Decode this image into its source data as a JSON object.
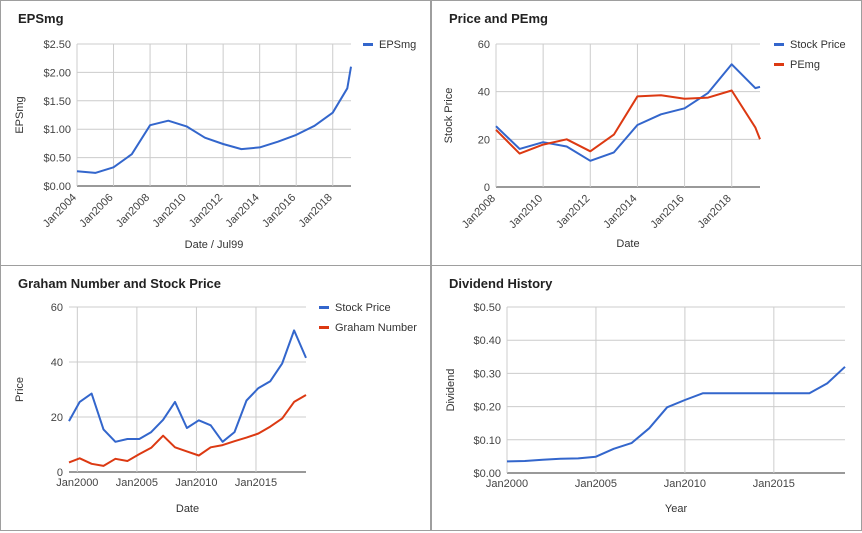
{
  "chart_data": [
    {
      "type": "line",
      "title": "EPSmg",
      "xlabel": "Date / Jul99",
      "ylabel": "EPSmg",
      "x_ticks": [
        "Jan2004",
        "Jan2006",
        "Jan2008",
        "Jan2010",
        "Jan2012",
        "Jan2014",
        "Jan2016",
        "Jan2018"
      ],
      "y_ticks": [
        "$0.00",
        "$0.50",
        "$1.00",
        "$1.50",
        "$2.00",
        "$2.50"
      ],
      "xlim": [
        2004,
        2019
      ],
      "ylim": [
        0,
        2.5
      ],
      "grid": true,
      "legend_position": "right",
      "series": [
        {
          "name": "EPSmg",
          "color": "#3366cc",
          "x": [
            2004,
            2005,
            2006,
            2007,
            2008,
            2009,
            2010,
            2011,
            2012,
            2013,
            2014,
            2015,
            2016,
            2017,
            2018,
            2018.8,
            2019
          ],
          "values": [
            0.26,
            0.23,
            0.33,
            0.56,
            1.07,
            1.15,
            1.05,
            0.85,
            0.74,
            0.65,
            0.68,
            0.78,
            0.9,
            1.06,
            1.29,
            1.72,
            2.1
          ]
        }
      ]
    },
    {
      "type": "line",
      "title": "Price and PEmg",
      "xlabel": "Date",
      "ylabel": "Stock Price",
      "x_ticks": [
        "Jan2008",
        "Jan2010",
        "Jan2012",
        "Jan2014",
        "Jan2016",
        "Jan2018"
      ],
      "y_ticks": [
        "0",
        "20",
        "40",
        "60"
      ],
      "xlim": [
        2008,
        2019.2
      ],
      "ylim": [
        0,
        60
      ],
      "grid": true,
      "legend_position": "right",
      "series": [
        {
          "name": "Stock Price",
          "color": "#3366cc",
          "x": [
            2008,
            2009,
            2010,
            2011,
            2012,
            2013,
            2014,
            2015,
            2016,
            2017,
            2018,
            2019,
            2019.2
          ],
          "values": [
            25.5,
            16.0,
            18.8,
            17.0,
            11.0,
            14.5,
            26.0,
            30.5,
            33.0,
            39.5,
            51.5,
            41.5,
            42.0
          ]
        },
        {
          "name": "PEmg",
          "color": "#dc3912",
          "x": [
            2008,
            2009,
            2010,
            2011,
            2012,
            2013,
            2014,
            2015,
            2016,
            2017,
            2018,
            2019,
            2019.2
          ],
          "values": [
            24.0,
            14.0,
            17.8,
            20.0,
            15.0,
            22.0,
            38.0,
            38.5,
            37.0,
            37.5,
            40.5,
            25.0,
            20.0
          ]
        }
      ]
    },
    {
      "type": "line",
      "title": "Graham Number and Stock Price",
      "xlabel": "Date",
      "ylabel": "Price",
      "x_ticks": [
        "Jan2000",
        "Jan2005",
        "Jan2010",
        "Jan2015"
      ],
      "y_ticks": [
        "0",
        "20",
        "40",
        "60"
      ],
      "xlim": [
        1999.3,
        2019.2
      ],
      "ylim": [
        0,
        60
      ],
      "grid": true,
      "legend_position": "right",
      "series": [
        {
          "name": "Stock Price",
          "color": "#3366cc",
          "x": [
            1999.3,
            2000.2,
            2001.2,
            2002.2,
            2003.2,
            2004.2,
            2005.2,
            2006.2,
            2007.2,
            2008.2,
            2009.2,
            2010.2,
            2011.2,
            2012.2,
            2013.2,
            2014.2,
            2015.2,
            2016.2,
            2017.2,
            2018.2,
            2019.2
          ],
          "values": [
            18.5,
            25.5,
            28.5,
            15.5,
            11.0,
            12.0,
            12.0,
            14.5,
            19.0,
            25.5,
            16.0,
            18.8,
            17.0,
            11.0,
            14.5,
            26.0,
            30.5,
            33.0,
            39.5,
            51.5,
            41.5
          ]
        },
        {
          "name": "Graham Number",
          "color": "#dc3912",
          "x": [
            1999.3,
            2000.2,
            2001.2,
            2002.2,
            2003.2,
            2004.2,
            2005.2,
            2006.2,
            2007.2,
            2008.2,
            2009.2,
            2010.2,
            2011.2,
            2012.2,
            2013.2,
            2014.2,
            2015.2,
            2016.2,
            2017.2,
            2018.2,
            2019.2
          ],
          "values": [
            3.5,
            5.0,
            3.0,
            2.2,
            4.8,
            4.0,
            6.5,
            8.8,
            13.2,
            9.0,
            7.5,
            6.0,
            9.0,
            9.8,
            11.2,
            12.5,
            14.0,
            16.5,
            19.5,
            25.5,
            28.0
          ]
        }
      ]
    },
    {
      "type": "line",
      "title": "Dividend History",
      "xlabel": "Year",
      "ylabel": "Dividend",
      "x_ticks": [
        "Jan2000",
        "Jan2005",
        "Jan2010",
        "Jan2015"
      ],
      "y_ticks": [
        "$0.00",
        "$0.10",
        "$0.20",
        "$0.30",
        "$0.40",
        "$0.50"
      ],
      "xlim": [
        2000,
        2019
      ],
      "ylim": [
        0,
        0.5
      ],
      "grid": true,
      "legend_position": "none",
      "series": [
        {
          "color": "#3366cc",
          "x": [
            2000,
            2001,
            2002,
            2003,
            2004,
            2005,
            2006,
            2007,
            2008,
            2009,
            2010,
            2011,
            2012,
            2013,
            2014,
            2015,
            2016,
            2017,
            2018,
            2019
          ],
          "values": [
            0.035,
            0.036,
            0.04,
            0.043,
            0.044,
            0.049,
            0.073,
            0.09,
            0.135,
            0.198,
            0.22,
            0.24,
            0.24,
            0.24,
            0.24,
            0.24,
            0.24,
            0.24,
            0.27,
            0.32
          ]
        }
      ]
    }
  ]
}
